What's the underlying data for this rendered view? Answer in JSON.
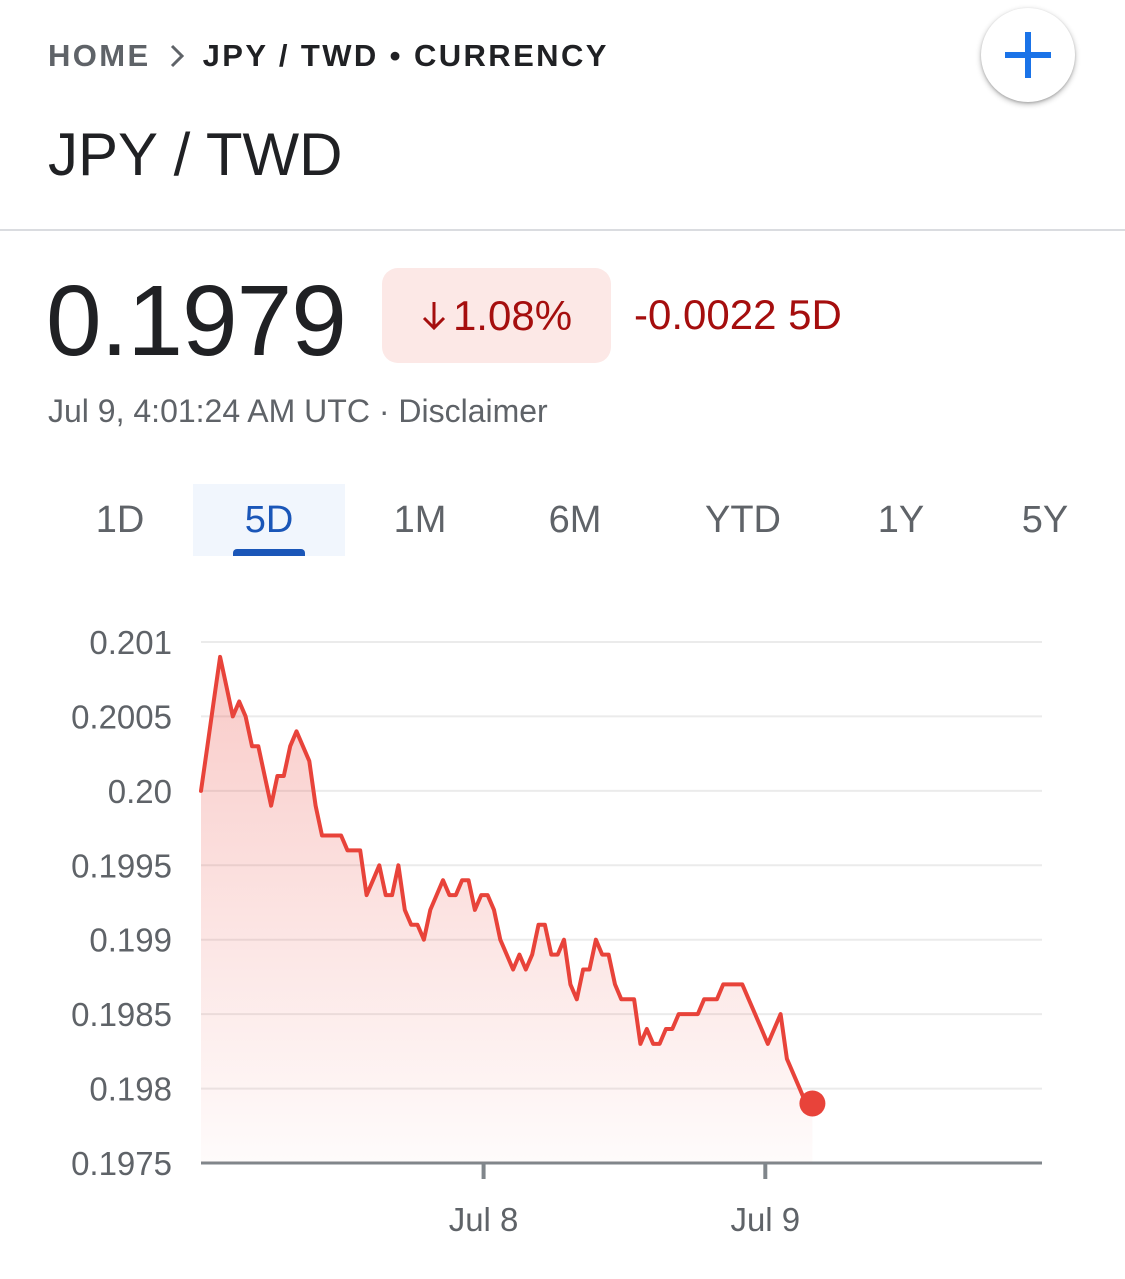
{
  "breadcrumb": {
    "home": "HOME",
    "current": "JPY / TWD • CURRENCY"
  },
  "header": {
    "title": "JPY / TWD",
    "add_icon": "plus-icon"
  },
  "quote": {
    "price": "0.1979",
    "change_percent": "1.08%",
    "change_abs": "-0.0022 5D",
    "timestamp": "Jul 9, 4:01:24 AM UTC",
    "separator": "·",
    "disclaimer": "Disclaimer",
    "direction_icon": "arrow-down-icon"
  },
  "tabs": [
    {
      "label": "1D",
      "active": false
    },
    {
      "label": "5D",
      "active": true
    },
    {
      "label": "1M",
      "active": false
    },
    {
      "label": "6M",
      "active": false
    },
    {
      "label": "YTD",
      "active": false
    },
    {
      "label": "1Y",
      "active": false
    },
    {
      "label": "5Y",
      "active": false
    }
  ],
  "colors": {
    "line": "#e8433a",
    "negative": "#a50e0e",
    "badge_bg": "#fce8e6",
    "accent": "#1a73e8",
    "tab_active": "#1a56b8"
  },
  "chart_data": {
    "type": "area",
    "xlabel": "",
    "ylabel": "",
    "ylim": [
      0.1975,
      0.201
    ],
    "y_ticks": [
      0.201,
      0.2005,
      0.2,
      0.1995,
      0.199,
      0.1985,
      0.198,
      0.1975
    ],
    "y_tick_labels": [
      "0.201",
      "0.2005",
      "0.20",
      "0.1995",
      "0.199",
      "0.1985",
      "0.198",
      "0.1975"
    ],
    "x_ticks": [
      {
        "label": "Jul 8",
        "t": 0.336
      },
      {
        "label": "Jul 9",
        "t": 0.671
      }
    ],
    "x_range": [
      0,
      1
    ],
    "grid": true,
    "series": [
      {
        "values": [
          0.2,
          0.2003,
          0.2006,
          0.2009,
          0.2007,
          0.2005,
          0.2006,
          0.2005,
          0.2003,
          0.2003,
          0.2001,
          0.1999,
          0.2001,
          0.2001,
          0.2003,
          0.2004,
          0.2003,
          0.2002,
          0.1999,
          0.1997,
          0.1997,
          0.1997,
          0.1997,
          0.1996,
          0.1996,
          0.1996,
          0.1993,
          0.1994,
          0.1995,
          0.1993,
          0.1993,
          0.1995,
          0.1992,
          0.1991,
          0.1991,
          0.199,
          0.1992,
          0.1993,
          0.1994,
          0.1993,
          0.1993,
          0.1994,
          0.1994,
          0.1992,
          0.1993,
          0.1993,
          0.1992,
          0.199,
          0.1989,
          0.1988,
          0.1989,
          0.1988,
          0.1989,
          0.1991,
          0.1991,
          0.1989,
          0.1989,
          0.199,
          0.1987,
          0.1986,
          0.1988,
          0.1988,
          0.199,
          0.1989,
          0.1989,
          0.1987,
          0.1986,
          0.1986,
          0.1986,
          0.1983,
          0.1984,
          0.1983,
          0.1983,
          0.1984,
          0.1984,
          0.1985,
          0.1985,
          0.1985,
          0.1985,
          0.1986,
          0.1986,
          0.1986,
          0.1987,
          0.1987,
          0.1987,
          0.1987,
          0.1986,
          0.1985,
          0.1984,
          0.1983,
          0.1984,
          0.1985,
          0.1982,
          0.1981,
          0.198,
          0.1979,
          0.1979
        ]
      }
    ]
  }
}
